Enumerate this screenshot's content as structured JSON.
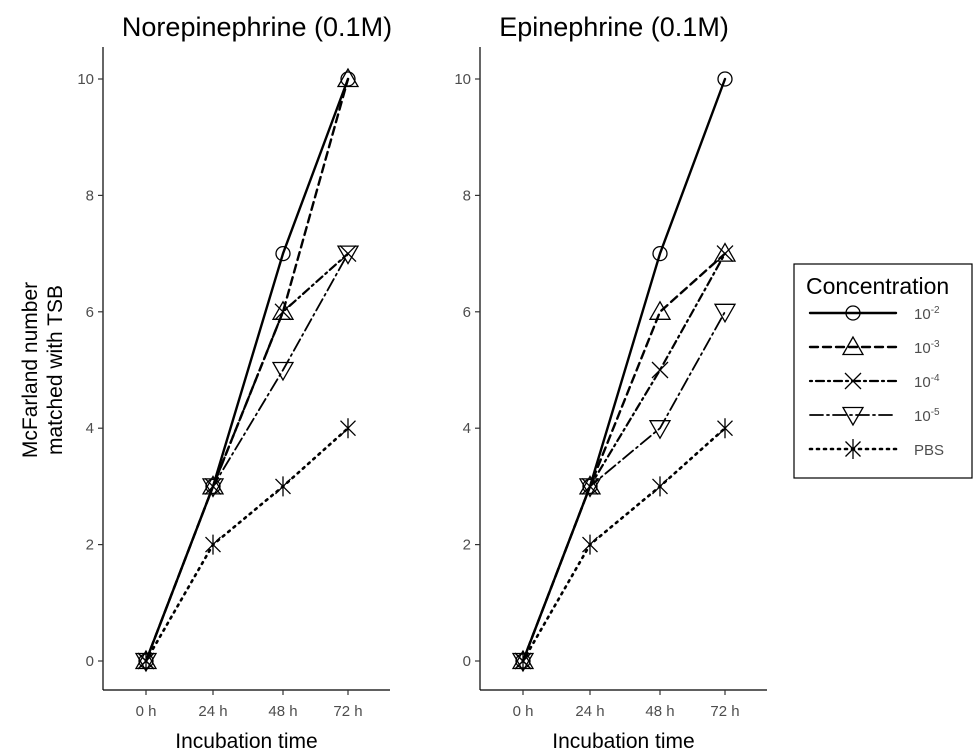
{
  "chart_data": [
    {
      "type": "line",
      "title": "Norepinephrine (0.1M)",
      "xlabel": "Incubation time",
      "ylabel": "McFarland number matched with TSB",
      "ylabel_lines": [
        "McFarland number",
        "matched with TSB"
      ],
      "categories": [
        "0 h",
        "24 h",
        "48 h",
        "72 h"
      ],
      "ylim": [
        0,
        10
      ],
      "yticks": [
        0,
        2,
        4,
        6,
        8,
        10
      ],
      "series": [
        {
          "name": "10-2",
          "values": [
            0,
            3,
            7,
            10
          ]
        },
        {
          "name": "10-3",
          "values": [
            0,
            3,
            6,
            10
          ]
        },
        {
          "name": "10-4",
          "values": [
            0,
            3,
            6,
            7
          ]
        },
        {
          "name": "10-5",
          "values": [
            0,
            3,
            5,
            7
          ]
        },
        {
          "name": "PBS",
          "values": [
            0,
            2,
            3,
            4
          ]
        }
      ]
    },
    {
      "type": "line",
      "title": "Epinephrine (0.1M)",
      "xlabel": "Incubation time",
      "ylabel": "",
      "categories": [
        "0 h",
        "24 h",
        "48 h",
        "72 h"
      ],
      "ylim": [
        0,
        10
      ],
      "yticks": [
        0,
        2,
        4,
        6,
        8,
        10
      ],
      "series": [
        {
          "name": "10-2",
          "values": [
            0,
            3,
            7,
            10
          ]
        },
        {
          "name": "10-3",
          "values": [
            0,
            3,
            6,
            7
          ]
        },
        {
          "name": "10-4",
          "values": [
            0,
            3,
            5,
            7
          ]
        },
        {
          "name": "10-5",
          "values": [
            0,
            3,
            4,
            6
          ]
        },
        {
          "name": "PBS",
          "values": [
            0,
            2,
            3,
            4
          ]
        }
      ]
    }
  ],
  "legend": {
    "title": "Concentration",
    "placement": "right",
    "entries": [
      {
        "base": "10",
        "exp": "-2",
        "marker": "circle",
        "linestyle": "solid"
      },
      {
        "base": "10",
        "exp": "-3",
        "marker": "triangle-up",
        "linestyle": "dashed"
      },
      {
        "base": "10",
        "exp": "-4",
        "marker": "cross",
        "linestyle": "dotdash"
      },
      {
        "base": "10",
        "exp": "-5",
        "marker": "triangle-down",
        "linestyle": "longdash-dot"
      },
      {
        "base": "PBS",
        "exp": "",
        "marker": "asterisk",
        "linestyle": "dotted"
      }
    ]
  }
}
